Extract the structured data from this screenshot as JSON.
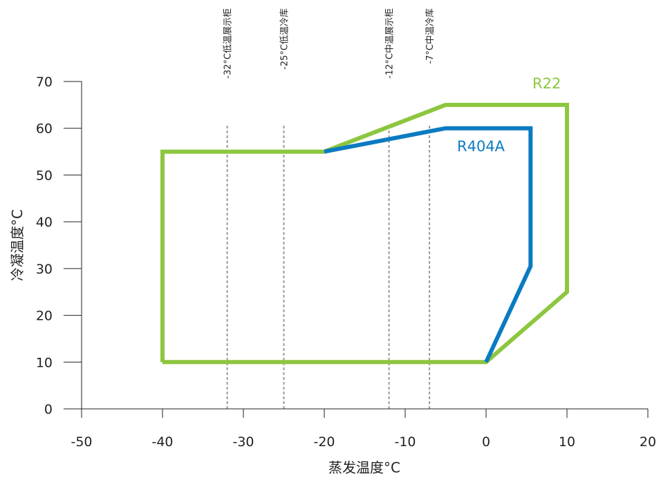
{
  "chart_data": {
    "type": "line",
    "title": "",
    "xlabel": "蒸发温度°C",
    "ylabel": "冷凝温度°C",
    "xlim": [
      -50,
      20
    ],
    "ylim": [
      0,
      70
    ],
    "x_ticks": [
      -50,
      -40,
      -30,
      -20,
      -10,
      0,
      10,
      20
    ],
    "y_ticks": [
      0,
      10,
      20,
      30,
      40,
      50,
      60,
      70
    ],
    "grid": false,
    "series": [
      {
        "name": "R22",
        "color": "#8dc63f",
        "points": [
          [
            -40,
            10
          ],
          [
            -40,
            55
          ],
          [
            -20,
            55
          ],
          [
            -5,
            65
          ],
          [
            10,
            65
          ],
          [
            10,
            25
          ],
          [
            0,
            10
          ],
          [
            -40,
            10
          ]
        ]
      },
      {
        "name": "R404A",
        "color": "#0b7bc1",
        "points": [
          [
            -20,
            55
          ],
          [
            -5,
            60
          ],
          [
            5.5,
            60
          ],
          [
            5.5,
            30.5
          ],
          [
            0,
            10
          ]
        ]
      }
    ],
    "annotations": [
      {
        "x": -32,
        "label": "-32°C低温展示柜"
      },
      {
        "x": -25,
        "label": "-25°C低温冷库"
      },
      {
        "x": -12,
        "label": "-12°C中温展示柜"
      },
      {
        "x": -7,
        "label": "-7°C中温冷库"
      }
    ]
  }
}
